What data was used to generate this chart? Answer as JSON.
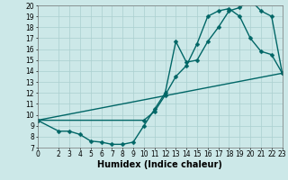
{
  "xlabel": "Humidex (Indice chaleur)",
  "bg_color": "#cce8e8",
  "line_color": "#006666",
  "grid_color": "#aacfcf",
  "xlim": [
    0,
    23
  ],
  "ylim": [
    7,
    20
  ],
  "xticks": [
    0,
    2,
    3,
    4,
    5,
    6,
    7,
    8,
    9,
    10,
    11,
    12,
    13,
    14,
    15,
    16,
    17,
    18,
    19,
    20,
    21,
    22,
    23
  ],
  "yticks": [
    7,
    8,
    9,
    10,
    11,
    12,
    13,
    14,
    15,
    16,
    17,
    18,
    19,
    20
  ],
  "curve1_x": [
    0,
    2,
    3,
    4,
    5,
    6,
    7,
    8,
    9,
    10,
    11,
    12,
    13,
    14,
    15,
    16,
    17,
    18,
    19,
    20,
    21,
    22,
    23
  ],
  "curve1_y": [
    9.5,
    8.5,
    8.5,
    8.2,
    7.6,
    7.5,
    7.3,
    7.3,
    7.5,
    9.0,
    10.5,
    12.0,
    16.7,
    14.8,
    15.0,
    16.7,
    18.0,
    19.5,
    19.8,
    20.5,
    19.5,
    19.0,
    13.8
  ],
  "curve2_x": [
    0,
    23
  ],
  "curve2_y": [
    9.5,
    13.8
  ],
  "curve3_x": [
    0,
    10,
    11,
    12,
    13,
    14,
    15,
    16,
    17,
    18,
    19,
    20,
    21,
    22,
    23
  ],
  "curve3_y": [
    9.5,
    9.5,
    10.3,
    11.8,
    13.5,
    14.5,
    16.5,
    19.0,
    19.5,
    19.7,
    19.0,
    17.0,
    15.8,
    15.5,
    13.8
  ],
  "marker": "D",
  "markersize": 2.5,
  "linewidth": 1.0,
  "xlabel_fontsize": 7,
  "tick_fontsize": 5.5
}
